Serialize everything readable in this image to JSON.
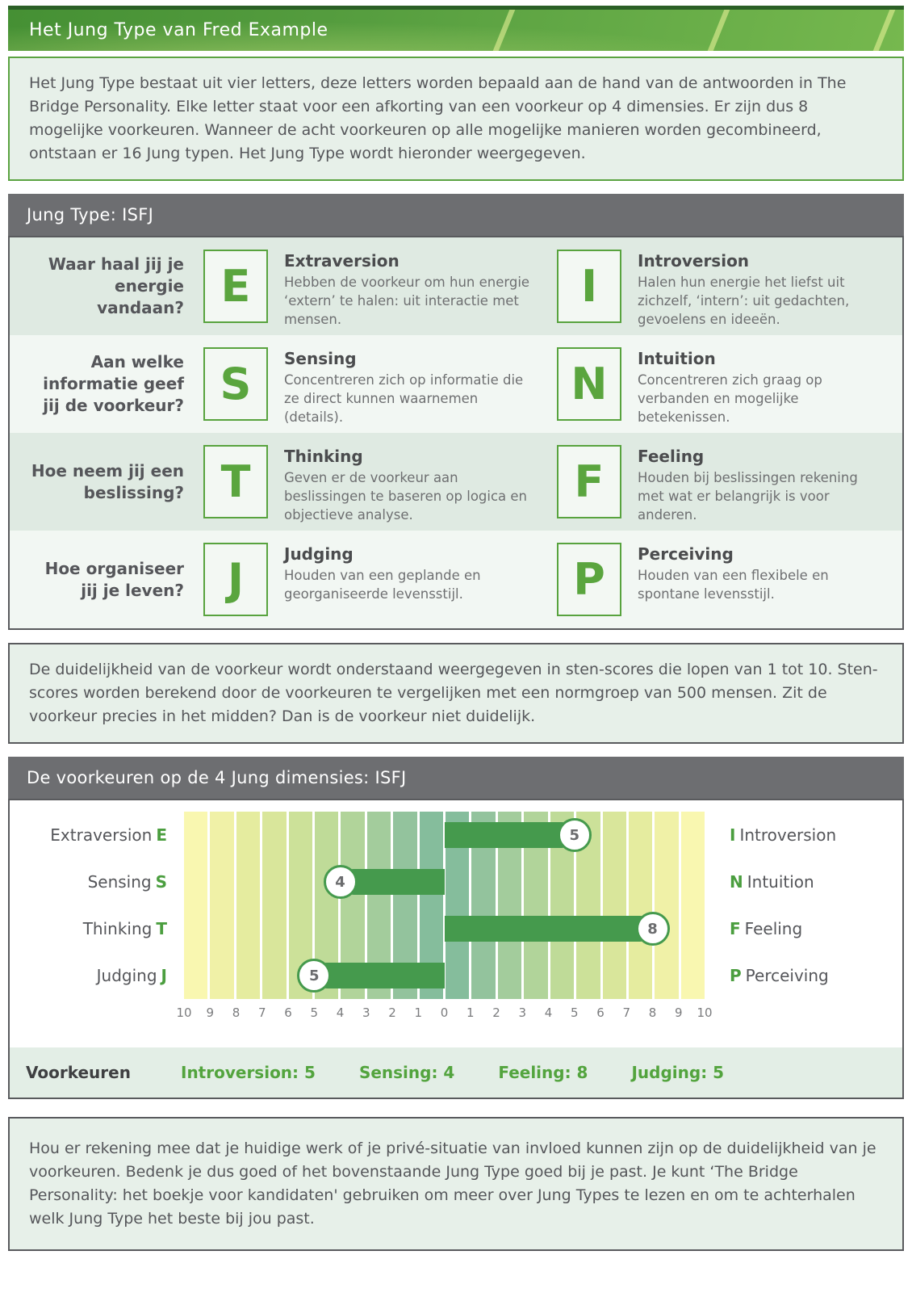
{
  "banner": {
    "title": "Het Jung Type van Fred Example"
  },
  "intro": {
    "text": "Het Jung Type bestaat uit vier letters, deze letters worden bepaald aan de hand van de antwoorden in The Bridge Personality. Elke letter staat voor een afkorting van een voorkeur op 4 dimensies. Er zijn dus 8 mogelijke voorkeuren. Wanneer de acht voorkeuren op alle mogelijke manieren worden gecombineerd, ontstaan er 16 Jung typen. Het Jung Type wordt hieronder weergegeven."
  },
  "jung": {
    "title": "Jung Type: ISFJ",
    "rows": [
      {
        "question": "Waar haal jij je energie vandaan?",
        "left": {
          "letter": "E",
          "name": "Extraversion",
          "description": "Hebben de voorkeur om hun energie ‘extern’ te halen: uit interactie met mensen."
        },
        "right": {
          "letter": "I",
          "name": "Introversion",
          "description": "Halen hun energie het liefst uit zichzelf, ‘intern’: uit gedachten, gevoelens en ideeën."
        }
      },
      {
        "question": "Aan welke informatie geef jij de voorkeur?",
        "left": {
          "letter": "S",
          "name": "Sensing",
          "description": "Concentreren zich op informatie die ze direct kunnen waarnemen (details)."
        },
        "right": {
          "letter": "N",
          "name": "Intuition",
          "description": "Concentreren zich graag op verbanden en mogelijke betekenissen."
        }
      },
      {
        "question": "Hoe neem jij een beslissing?",
        "left": {
          "letter": "T",
          "name": "Thinking",
          "description": "Geven er de voorkeur aan beslissingen te baseren op logica en objectieve analyse."
        },
        "right": {
          "letter": "F",
          "name": "Feeling",
          "description": "Houden bij beslissingen rekening met wat er belangrijk is voor anderen."
        }
      },
      {
        "question": "Hoe organiseer jij je leven?",
        "left": {
          "letter": "J",
          "name": "Judging",
          "description": "Houden van een geplande en georganiseerde levensstijl."
        },
        "right": {
          "letter": "P",
          "name": "Perceiving",
          "description": "Houden van een flexibele en spontane levensstijl."
        }
      }
    ]
  },
  "sten": {
    "text": "De duidelijkheid van de voorkeur wordt onderstaand weergegeven in sten-scores die lopen van 1 tot 10. Sten-scores worden berekend door de voorkeuren te vergelijken met een normgroep van 500 mensen. Zit de voorkeur precies in het midden? Dan is de voorkeur niet duidelijk."
  },
  "chart": {
    "title": "De voorkeuren op de 4 Jung dimensies: ISFJ",
    "footer": {
      "label": "Voorkeuren",
      "items": [
        "Introversion: 5",
        "Sensing: 4",
        "Feeling: 8",
        "Judging: 5"
      ]
    }
  },
  "chart_data": {
    "type": "bar",
    "orientation": "horizontal-diverging",
    "axis_ticks": [
      "10",
      "9",
      "8",
      "7",
      "6",
      "5",
      "4",
      "3",
      "2",
      "1",
      "0",
      "1",
      "2",
      "3",
      "4",
      "5",
      "6",
      "7",
      "8",
      "9",
      "10"
    ],
    "axis_range_each_side": [
      0,
      10
    ],
    "rows": [
      {
        "left_letter": "E",
        "left_label": "Extraversion",
        "right_letter": "I",
        "right_label": "Introversion",
        "side": "right",
        "value": 5
      },
      {
        "left_letter": "S",
        "left_label": "Sensing",
        "right_letter": "N",
        "right_label": "Intuition",
        "side": "left",
        "value": 4
      },
      {
        "left_letter": "T",
        "left_label": "Thinking",
        "right_letter": "F",
        "right_label": "Feeling",
        "side": "right",
        "value": 8
      },
      {
        "left_letter": "J",
        "left_label": "Judging",
        "right_letter": "P",
        "right_label": "Perceiving",
        "side": "left",
        "value": 5
      }
    ],
    "band_colors": [
      "#f9f7b0",
      "#f0f1a7",
      "#e5ec9f",
      "#d9e69b",
      "#cce199",
      "#bfdb98",
      "#b1d49a",
      "#a3cc9c",
      "#93c39d",
      "#85bd9c",
      "#85bd9c",
      "#93c39d",
      "#a3cc9c",
      "#b1d49a",
      "#bfdb98",
      "#cce199",
      "#d9e69b",
      "#e5ec9f",
      "#f0f1a7",
      "#f9f7b0"
    ]
  },
  "outro": {
    "text": "Hou er rekening mee dat je huidige werk of je privé-situatie van invloed kunnen zijn op de duidelijkheid van je voorkeuren. Bedenk je dus goed of het bovenstaande Jung Type goed bij je past. Je kunt ‘The Bridge Personality: het boekje voor kandidaten' gebruiken om meer over Jung Types te lezen en om te achterhalen welk Jung Type het beste bij jou past."
  },
  "colors": {
    "green_accent": "#58a33e",
    "bar_green": "#459a4d",
    "header_gray": "#6d6e71",
    "panel_bg": "#e7f0e9",
    "row_alt_bg": "#dfeae2",
    "row_bg": "#f2f7f3",
    "border_gray": "#595a5d",
    "banner_green_dark": "#459034",
    "banner_green_light": "#76b84e"
  }
}
